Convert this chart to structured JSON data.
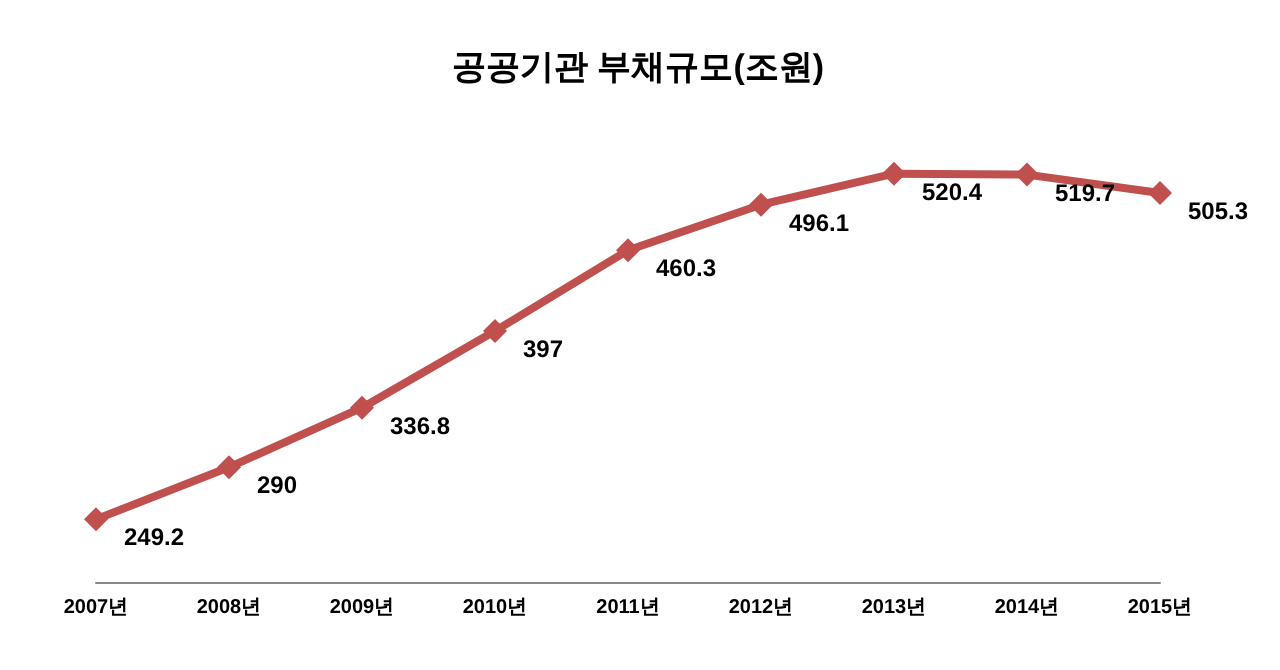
{
  "chart_data": {
    "type": "line",
    "title": "공공기관 부채규모(조원)",
    "categories": [
      "2007년",
      "2008년",
      "2009년",
      "2010년",
      "2011년",
      "2012년",
      "2013년",
      "2014년",
      "2015년"
    ],
    "series": [
      {
        "color": "#c0504d",
        "values": [
          249.2,
          290,
          336.8,
          397,
          460.3,
          496.1,
          520.4,
          519.7,
          505.3
        ]
      }
    ],
    "data_labels": true,
    "marker": "diamond",
    "line_style": "solid",
    "grid": false,
    "tick_labels": "x"
  }
}
